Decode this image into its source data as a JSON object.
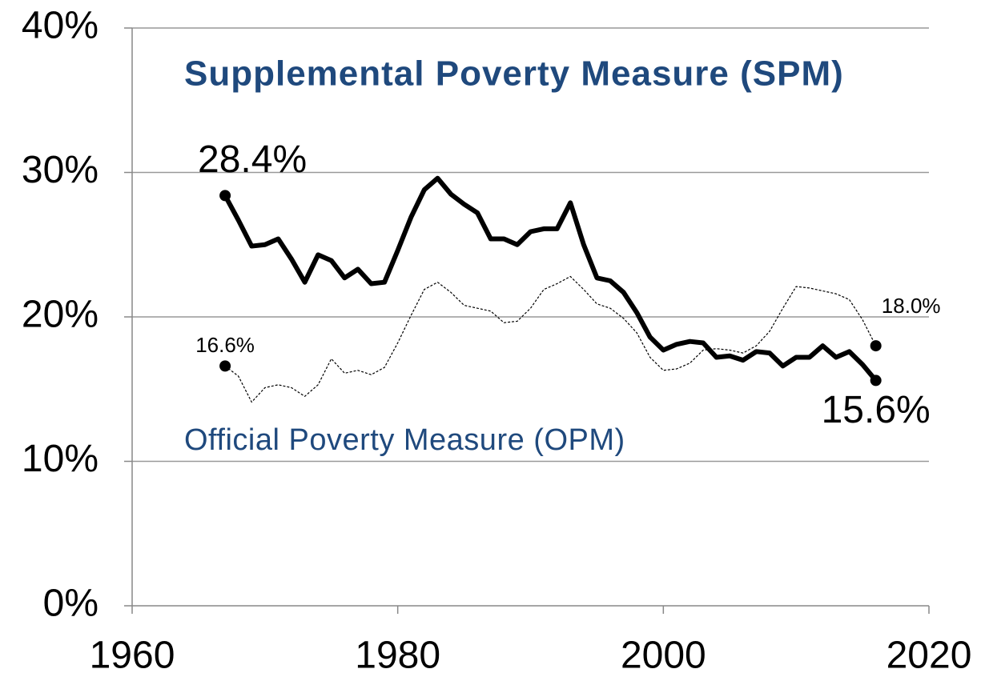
{
  "chart_data": {
    "type": "line",
    "x": [
      1967,
      1968,
      1969,
      1970,
      1971,
      1972,
      1973,
      1974,
      1975,
      1976,
      1977,
      1978,
      1979,
      1980,
      1981,
      1982,
      1983,
      1984,
      1985,
      1986,
      1987,
      1988,
      1989,
      1990,
      1991,
      1992,
      1993,
      1994,
      1995,
      1996,
      1997,
      1998,
      1999,
      2000,
      2001,
      2002,
      2003,
      2004,
      2005,
      2006,
      2007,
      2008,
      2009,
      2010,
      2011,
      2012,
      2013,
      2014,
      2015,
      2016
    ],
    "series": [
      {
        "name": "Supplemental Poverty Measure (SPM)",
        "color": "#000000",
        "label_color": "#1f497d",
        "values": [
          28.4,
          26.7,
          24.9,
          25.0,
          25.4,
          24.0,
          22.4,
          24.3,
          23.9,
          22.7,
          23.3,
          22.3,
          22.4,
          24.6,
          26.9,
          28.8,
          29.6,
          28.5,
          27.8,
          27.2,
          25.4,
          25.4,
          25.0,
          25.9,
          26.1,
          26.1,
          27.9,
          25.0,
          22.7,
          22.5,
          21.7,
          20.3,
          18.6,
          17.7,
          18.1,
          18.3,
          18.2,
          17.2,
          17.3,
          17.0,
          17.6,
          17.5,
          16.6,
          17.2,
          17.2,
          18.0,
          17.2,
          17.6,
          16.7,
          15.6
        ],
        "value_labels": [
          "28.4%",
          null,
          null,
          null,
          null,
          null,
          null,
          null,
          null,
          null,
          null,
          null,
          null,
          null,
          null,
          null,
          null,
          null,
          null,
          null,
          null,
          null,
          null,
          null,
          null,
          null,
          null,
          null,
          null,
          null,
          null,
          null,
          null,
          null,
          null,
          null,
          null,
          null,
          null,
          null,
          null,
          null,
          null,
          null,
          null,
          null,
          null,
          null,
          null,
          "15.6%"
        ]
      },
      {
        "name": "Official Poverty Measure (OPM)",
        "color": "#000000",
        "label_color": "#1f497d",
        "values": [
          16.6,
          15.9,
          14.1,
          15.1,
          15.3,
          15.1,
          14.5,
          15.3,
          17.1,
          16.1,
          16.3,
          16.0,
          16.5,
          18.2,
          20.1,
          21.9,
          22.4,
          21.7,
          20.8,
          20.6,
          20.4,
          19.6,
          19.7,
          20.6,
          21.9,
          22.3,
          22.8,
          21.9,
          20.9,
          20.6,
          19.9,
          18.9,
          17.2,
          16.3,
          16.4,
          16.8,
          17.7,
          17.8,
          17.7,
          17.5,
          18.0,
          19.0,
          20.6,
          22.1,
          22.0,
          21.8,
          21.6,
          21.2,
          19.8,
          18.0
        ],
        "value_labels": [
          "16.6%",
          null,
          null,
          null,
          null,
          null,
          null,
          null,
          null,
          null,
          null,
          null,
          null,
          null,
          null,
          null,
          null,
          null,
          null,
          null,
          null,
          null,
          null,
          null,
          null,
          null,
          null,
          null,
          null,
          null,
          null,
          null,
          null,
          null,
          null,
          null,
          null,
          null,
          null,
          null,
          null,
          null,
          null,
          null,
          null,
          null,
          null,
          null,
          null,
          "18.0%"
        ]
      }
    ],
    "xlim": [
      1960,
      2020
    ],
    "xticks": [
      1960,
      1980,
      2000,
      2020
    ],
    "ylim": [
      0,
      40
    ],
    "yticks": [
      {
        "value": 0,
        "label": "0%"
      },
      {
        "value": 10,
        "label": "10%"
      },
      {
        "value": 20,
        "label": "20%"
      },
      {
        "value": 30,
        "label": "30%"
      },
      {
        "value": 40,
        "label": "40%"
      }
    ],
    "grid": true
  }
}
